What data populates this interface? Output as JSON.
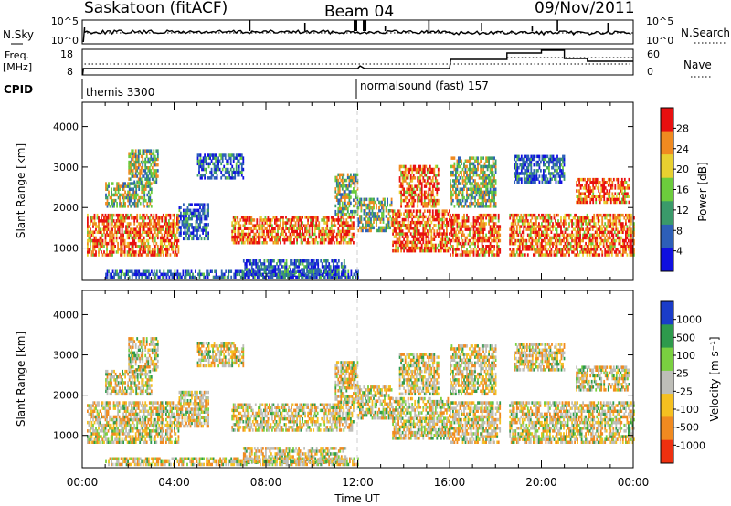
{
  "header": {
    "station": "Saskatoon (fitACF)",
    "beam": "Beam 04",
    "date": "09/Nov/2011"
  },
  "status_panels": {
    "nsky_label": "N.Sky",
    "nsky_ticks": [
      "10^5",
      "10^0"
    ],
    "nsearch_label": "N.Search",
    "nsearch_ticks": [
      "10^5",
      "10^0"
    ],
    "freq_label_line1": "Freq.",
    "freq_label_line2": "[MHz]",
    "freq_ticks": [
      "18",
      "8"
    ],
    "nave_label": "Nave",
    "nave_ticks": [
      "60",
      "0"
    ],
    "cpid_label": "CPID",
    "cpid_segments": [
      {
        "name": "themis 3300",
        "start_hour": 0
      },
      {
        "name": "normalsound (fast) 157",
        "start_hour": 12
      }
    ]
  },
  "chart_data": [
    {
      "type": "heatmap",
      "title": "Power",
      "xlabel": "",
      "ylabel": "Slant Range [km]",
      "colorbar_label": "Power [dB]",
      "xlim_hours": [
        0,
        24
      ],
      "ylim": [
        200,
        4600
      ],
      "y_ticks": [
        "1000",
        "2000",
        "3000",
        "4000"
      ],
      "colorbar_ticks": [
        "4",
        "8",
        "12",
        "16",
        "20",
        "24",
        "28"
      ],
      "colorbar_colors": [
        "#1010e0",
        "#2d5fb8",
        "#3a9a6a",
        "#6ccc3c",
        "#e8d030",
        "#f08a20",
        "#e81010"
      ]
    },
    {
      "type": "heatmap",
      "title": "Velocity",
      "xlabel": "Time UT",
      "ylabel": "Slant Range [km]",
      "colorbar_label": "Velocity [m s⁻¹]",
      "xlim_hours": [
        0,
        24
      ],
      "ylim": [
        200,
        4600
      ],
      "y_ticks": [
        "1000",
        "2000",
        "3000",
        "4000"
      ],
      "colorbar_ticks": [
        "1000",
        "500",
        "100",
        "25",
        "-25",
        "-100",
        "-500",
        "-1000"
      ],
      "colorbar_colors": [
        "#1a3cc8",
        "#2e9a4c",
        "#7ad040",
        "#bebeb8",
        "#f5c020",
        "#f08a20",
        "#ee3010"
      ],
      "x_ticks": [
        "00:00",
        "04:00",
        "08:00",
        "12:00",
        "16:00",
        "20:00",
        "00:00"
      ]
    }
  ]
}
